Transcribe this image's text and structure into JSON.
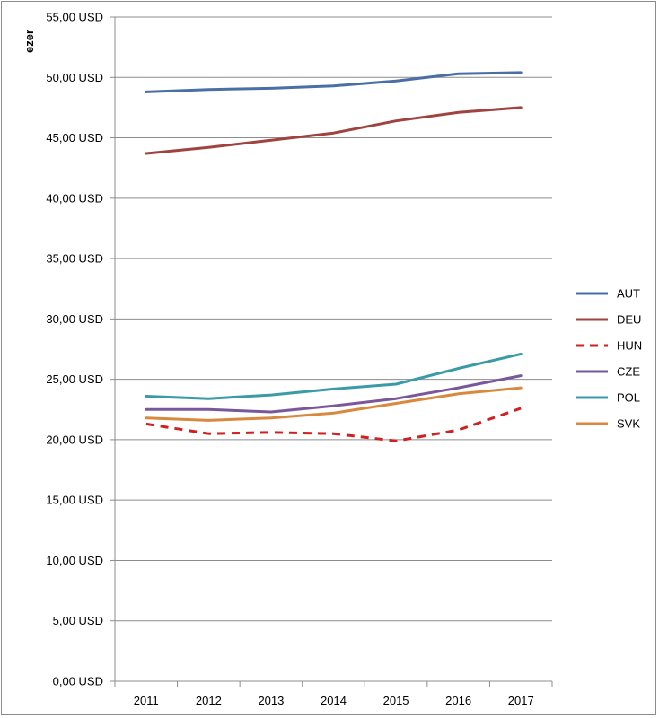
{
  "chart_data": {
    "type": "line",
    "ylabel": "ezer",
    "xlabel": "",
    "title": "",
    "ylim": [
      0,
      55
    ],
    "y_ticks": [
      {
        "value": 0,
        "label": "0,00 USD"
      },
      {
        "value": 5,
        "label": "5,00 USD"
      },
      {
        "value": 10,
        "label": "10,00 USD"
      },
      {
        "value": 15,
        "label": "15,00 USD"
      },
      {
        "value": 20,
        "label": "20,00 USD"
      },
      {
        "value": 25,
        "label": "25,00 USD"
      },
      {
        "value": 30,
        "label": "30,00 USD"
      },
      {
        "value": 35,
        "label": "35,00 USD"
      },
      {
        "value": 40,
        "label": "40,00 USD"
      },
      {
        "value": 45,
        "label": "45,00 USD"
      },
      {
        "value": 50,
        "label": "50,00 USD"
      },
      {
        "value": 55,
        "label": "55,00 USD"
      }
    ],
    "categories": [
      "2011",
      "2012",
      "2013",
      "2014",
      "2015",
      "2016",
      "2017"
    ],
    "grid": "horizontal",
    "legend_position": "right",
    "series": [
      {
        "name": "AUT",
        "color": "#4A6FA5",
        "dashed": false,
        "values": [
          48.8,
          49.0,
          49.1,
          49.3,
          49.7,
          50.3,
          50.4
        ]
      },
      {
        "name": "DEU",
        "color": "#A0433E",
        "dashed": false,
        "values": [
          43.7,
          44.2,
          44.8,
          45.4,
          46.4,
          47.1,
          47.5
        ]
      },
      {
        "name": "HUN",
        "color": "#D21F1F",
        "dashed": true,
        "values": [
          21.3,
          20.5,
          20.6,
          20.5,
          19.9,
          20.8,
          22.6
        ]
      },
      {
        "name": "CZE",
        "color": "#7A579A",
        "dashed": false,
        "values": [
          22.5,
          22.5,
          22.3,
          22.8,
          23.4,
          24.3,
          25.3
        ]
      },
      {
        "name": "POL",
        "color": "#3A9BA8",
        "dashed": false,
        "values": [
          23.6,
          23.4,
          23.7,
          24.2,
          24.6,
          25.9,
          27.1
        ]
      },
      {
        "name": "SVK",
        "color": "#D8893D",
        "dashed": false,
        "values": [
          21.8,
          21.6,
          21.8,
          22.2,
          23.0,
          23.8,
          24.3
        ]
      }
    ]
  }
}
